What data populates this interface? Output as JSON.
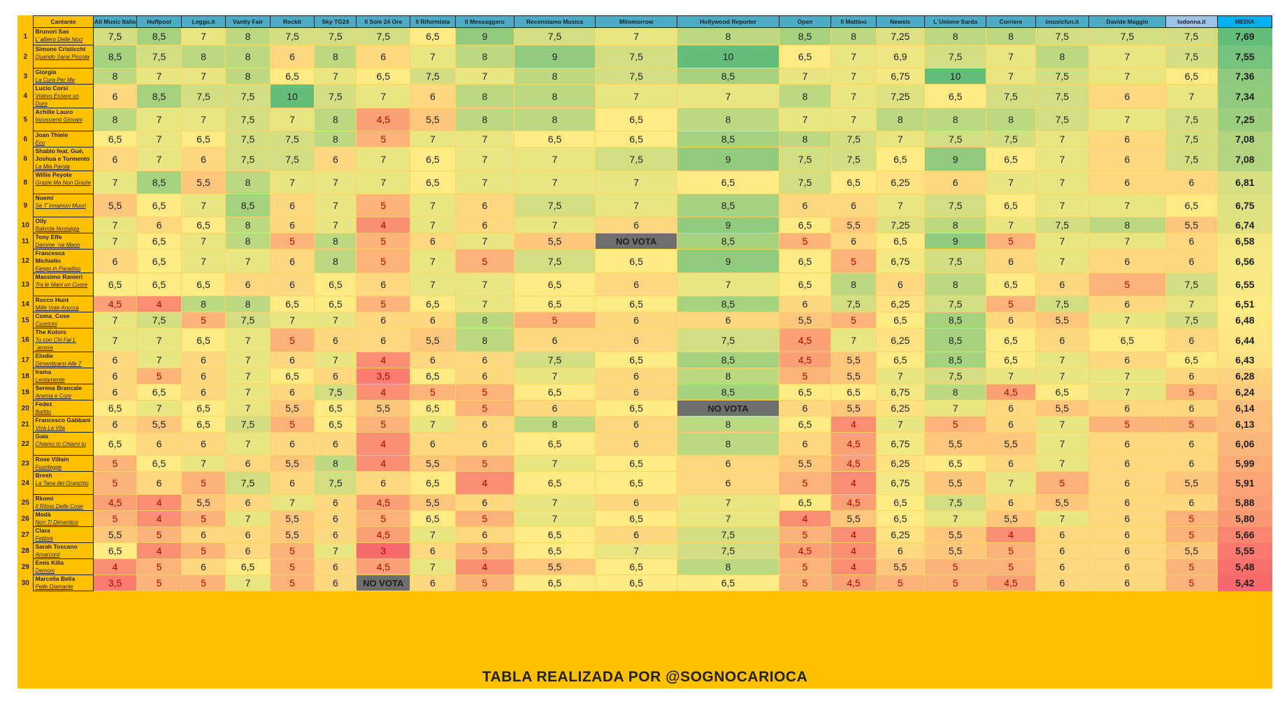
{
  "chart_data": {
    "type": "table",
    "footer": "TABLA REALIZADA POR @SOGNOCARIOCA",
    "no_vote_label": "NO VOTA",
    "header": {
      "singer_label": "Cantante",
      "outlets": [
        "All Music Italia",
        "Huffpost",
        "Leggo.it",
        "Vanity Fair",
        "Rockit",
        "Sky TG24",
        "Il Sole 24 Ore",
        "Il Riformista",
        "Il Messaggero",
        "Recensiamo Musica",
        "Mitomorrow",
        "Hollywood Reporter",
        "Open",
        "Il Mattino",
        "Newsic",
        "L´Unione Sarda",
        "Corriere",
        "imusicfun.it",
        "Davide Maggio",
        "Iodonna.it"
      ],
      "average_label": "MEDIA"
    },
    "rows": [
      {
        "rank": "1",
        "singer": "Brunori Sas",
        "song": "L´albero Delle Noci",
        "scores": [
          "7,5",
          "8,5",
          "7",
          "8",
          "7,5",
          "7,5",
          "7,5",
          "6,5",
          "9",
          "7,5",
          "7",
          "8",
          "8,5",
          "8",
          "7,25",
          "8",
          "8",
          "7,5",
          "7,5",
          "7,5"
        ],
        "average": "7,69"
      },
      {
        "rank": "2",
        "singer": "Simone Cristicchi",
        "song": "Quando Sarai Piccola",
        "scores": [
          "8,5",
          "7,5",
          "8",
          "8",
          "6",
          "8",
          "6",
          "7",
          "8",
          "9",
          "7,5",
          "10",
          "6,5",
          "7",
          "6,9",
          "7,5",
          "7",
          "8",
          "7",
          "7,5"
        ],
        "average": "7,55"
      },
      {
        "rank": "3",
        "singer": "Giorgia",
        "song": "La Cura Per Me",
        "scores": [
          "8",
          "7",
          "7",
          "8",
          "6,5",
          "7",
          "6,5",
          "7,5",
          "7",
          "8",
          "7,5",
          "8,5",
          "7",
          "7",
          "6,75",
          "10",
          "7",
          "7,5",
          "7",
          "6,5"
        ],
        "average": "7,36"
      },
      {
        "rank": "4",
        "singer": "Lucio Corsi",
        "song": "Volevo Essere un Duro",
        "scores": [
          "6",
          "8,5",
          "7,5",
          "7,5",
          "10",
          "7,5",
          "7",
          "6",
          "8",
          "8",
          "7",
          "7",
          "8",
          "7",
          "7,25",
          "6,5",
          "7,5",
          "7,5",
          "6",
          "7"
        ],
        "average": "7,34"
      },
      {
        "rank": "5",
        "singer": "Achille Lauro",
        "song": "Incoscienti Giovani",
        "scores": [
          "8",
          "7",
          "7",
          "7,5",
          "7",
          "8",
          "4,5",
          "5,5",
          "8",
          "8",
          "6,5",
          "8",
          "7",
          "7",
          "8",
          "8",
          "8",
          "7,5",
          "7",
          "7,5"
        ],
        "average": "7,25"
      },
      {
        "rank": "6",
        "singer": "Joan Thiele",
        "song": "Eco",
        "scores": [
          "6,5",
          "7",
          "6,5",
          "7,5",
          "7,5",
          "8",
          "5",
          "7",
          "7",
          "6,5",
          "6,5",
          "8,5",
          "8",
          "7,5",
          "7",
          "7,5",
          "7,5",
          "7",
          "6",
          "7,5"
        ],
        "average": "7,08"
      },
      {
        "rank": "6",
        "singer": "Shablo feat. Guè, Joshua e Tormento",
        "song": "La Mia Parola",
        "scores": [
          "6",
          "7",
          "6",
          "7,5",
          "7,5",
          "6",
          "7",
          "6,5",
          "7",
          "7",
          "7,5",
          "9",
          "7,5",
          "7,5",
          "6,5",
          "9",
          "6,5",
          "7",
          "6",
          "7,5"
        ],
        "average": "7,08"
      },
      {
        "rank": "8",
        "singer": "Willie Peyote",
        "song": "Grazie Ma Non Grazie",
        "scores": [
          "7",
          "8,5",
          "5,5",
          "8",
          "7",
          "7",
          "7",
          "6,5",
          "7",
          "7",
          "7",
          "6,5",
          "7,5",
          "6,5",
          "6,25",
          "6",
          "7",
          "7",
          "6",
          "6"
        ],
        "average": "6,81"
      },
      {
        "rank": "9",
        "singer": "Noemi",
        "song": "Se T´innamori Muori",
        "scores": [
          "5,5",
          "6,5",
          "7",
          "8,5",
          "6",
          "7",
          "5",
          "7",
          "6",
          "7,5",
          "7",
          "8,5",
          "6",
          "6",
          "7",
          "7,5",
          "6,5",
          "7",
          "7",
          "6,5"
        ],
        "average": "6,75"
      },
      {
        "rank": "10",
        "singer": "Olly",
        "song": "Balorda Nostalgia",
        "scores": [
          "7",
          "6",
          "6,5",
          "8",
          "6",
          "7",
          "4",
          "7",
          "6",
          "7",
          "6",
          "9",
          "6,5",
          "5,5",
          "7,25",
          "8",
          "7",
          "7,5",
          "8",
          "5,5"
        ],
        "average": "6,74"
      },
      {
        "rank": "11",
        "singer": "Tony Effe",
        "song": "Damme ´na Mano",
        "scores": [
          "7",
          "6,5",
          "7",
          "8",
          "5",
          "8",
          "5",
          "6",
          "7",
          "5,5",
          "NO VOTA",
          "8,5",
          "5",
          "6",
          "6,5",
          "9",
          "5",
          "7",
          "7",
          "6"
        ],
        "average": "6,58"
      },
      {
        "rank": "12",
        "singer": "Francesca Michielin",
        "song": "Fango in Paradiso",
        "scores": [
          "6",
          "6,5",
          "7",
          "7",
          "6",
          "8",
          "5",
          "7",
          "5",
          "7,5",
          "6,5",
          "9",
          "6,5",
          "5",
          "6,75",
          "7,5",
          "6",
          "7",
          "6",
          "6"
        ],
        "average": "6,56"
      },
      {
        "rank": "13",
        "singer": "Massimo Ranieri",
        "song": "Tra le Mani un Cuore",
        "scores": [
          "6,5",
          "6,5",
          "6,5",
          "6",
          "6",
          "6,5",
          "6",
          "7",
          "7",
          "6,5",
          "6",
          "7",
          "6,5",
          "8",
          "6",
          "8",
          "6,5",
          "6",
          "5",
          "7,5"
        ],
        "average": "6,55"
      },
      {
        "rank": "14",
        "singer": "Rocco Hunt",
        "song": "Mille Vote Ancora",
        "scores": [
          "4,5",
          "4",
          "8",
          "8",
          "6,5",
          "6,5",
          "5",
          "6,5",
          "7",
          "6,5",
          "6,5",
          "8,5",
          "6",
          "7,5",
          "6,25",
          "7,5",
          "5",
          "7,5",
          "6",
          "7"
        ],
        "average": "6,51"
      },
      {
        "rank": "15",
        "singer": "Coma_Cose",
        "song": "Cuoricini",
        "scores": [
          "7",
          "7,5",
          "5",
          "7,5",
          "7",
          "7",
          "6",
          "6",
          "8",
          "5",
          "6",
          "6",
          "5,5",
          "5",
          "6,5",
          "8,5",
          "6",
          "5,5",
          "7",
          "7,5"
        ],
        "average": "6,48"
      },
      {
        "rank": "16",
        "singer": "The Kolors",
        "song": "Tu con Chi Fai L´amore",
        "scores": [
          "7",
          "7",
          "6,5",
          "7",
          "5",
          "6",
          "6",
          "5,5",
          "8",
          "6",
          "6",
          "7,5",
          "4,5",
          "7",
          "6,25",
          "8,5",
          "6,5",
          "6",
          "6,5",
          "6"
        ],
        "average": "6,44"
      },
      {
        "rank": "17",
        "singer": "Elodie",
        "song": "Dimenticarsi Alle 7",
        "scores": [
          "6",
          "7",
          "6",
          "7",
          "6",
          "7",
          "4",
          "6",
          "6",
          "7,5",
          "6,5",
          "8,5",
          "4,5",
          "5,5",
          "6,5",
          "8,5",
          "6,5",
          "7",
          "6",
          "6,5"
        ],
        "average": "6,43"
      },
      {
        "rank": "18",
        "singer": "Irama",
        "song": "Lentamente",
        "scores": [
          "6",
          "5",
          "6",
          "7",
          "6,5",
          "6",
          "3,5",
          "6,5",
          "6",
          "7",
          "6",
          "8",
          "5",
          "5,5",
          "7",
          "7,5",
          "7",
          "7",
          "7",
          "6"
        ],
        "average": "6,28"
      },
      {
        "rank": "19",
        "singer": "Serena Brancale",
        "song": "Anema e Core",
        "scores": [
          "6",
          "6,5",
          "6",
          "7",
          "6",
          "7,5",
          "4",
          "5",
          "5",
          "6,5",
          "6",
          "8,5",
          "6,5",
          "6,5",
          "6,75",
          "8",
          "4,5",
          "6,5",
          "7",
          "5"
        ],
        "average": "6,24"
      },
      {
        "rank": "20",
        "singer": "Fedez",
        "song": "Battito",
        "scores": [
          "6,5",
          "7",
          "6,5",
          "7",
          "5,5",
          "6,5",
          "5,5",
          "6,5",
          "5",
          "6",
          "6,5",
          "NO VOTA",
          "6",
          "5,5",
          "6,25",
          "7",
          "6",
          "5,5",
          "6",
          "6"
        ],
        "average": "6,14"
      },
      {
        "rank": "21",
        "singer": "Francesco Gabbani",
        "song": "Viva La Vita",
        "scores": [
          "6",
          "5,5",
          "6,5",
          "7,5",
          "5",
          "6,5",
          "5",
          "7",
          "6",
          "8",
          "6",
          "8",
          "6,5",
          "4",
          "7",
          "5",
          "6",
          "7",
          "5",
          "5"
        ],
        "average": "6,13"
      },
      {
        "rank": "22",
        "singer": "Gaia",
        "song": "Chiamo Io Chiami tu",
        "scores": [
          "6,5",
          "6",
          "6",
          "7",
          "6",
          "6",
          "4",
          "6",
          "6",
          "6,5",
          "6",
          "8",
          "6",
          "4,5",
          "6,75",
          "5,5",
          "5,5",
          "7",
          "6",
          "6"
        ],
        "average": "6,06"
      },
      {
        "rank": "23",
        "singer": "Rose Villain",
        "song": "Fuorilegge",
        "scores": [
          "5",
          "6,5",
          "7",
          "6",
          "5,5",
          "8",
          "4",
          "5,5",
          "5",
          "7",
          "6,5",
          "6",
          "5,5",
          "4,5",
          "6,25",
          "6,5",
          "6",
          "7",
          "6",
          "6"
        ],
        "average": "5,99"
      },
      {
        "rank": "24",
        "singer": "Bresh",
        "song": "La Tana del Granchio",
        "scores": [
          "5",
          "6",
          "5",
          "7,5",
          "6",
          "7,5",
          "6",
          "6,5",
          "4",
          "6,5",
          "6,5",
          "6",
          "5",
          "4",
          "6,75",
          "5,5",
          "7",
          "5",
          "6",
          "5,5"
        ],
        "average": "5,91"
      },
      {
        "rank": "25",
        "singer": "Rkomi",
        "song": "Il Ritmo Delle Cose",
        "scores": [
          "4,5",
          "4",
          "5,5",
          "6",
          "7",
          "6",
          "4,5",
          "5,5",
          "6",
          "7",
          "6",
          "7",
          "6,5",
          "4,5",
          "6,5",
          "7,5",
          "6",
          "5,5",
          "6",
          "6"
        ],
        "average": "5,88"
      },
      {
        "rank": "26",
        "singer": "Modà",
        "song": "Non Ti Dimentico",
        "scores": [
          "5",
          "4",
          "5",
          "7",
          "5,5",
          "6",
          "5",
          "6,5",
          "5",
          "7",
          "6,5",
          "7",
          "4",
          "5,5",
          "6,5",
          "7",
          "5,5",
          "7",
          "6",
          "5"
        ],
        "average": "5,80"
      },
      {
        "rank": "27",
        "singer": "Clara",
        "song": "Febbre",
        "scores": [
          "5,5",
          "5",
          "6",
          "6",
          "5,5",
          "6",
          "4,5",
          "7",
          "6",
          "6,5",
          "6",
          "7,5",
          "5",
          "4",
          "6,25",
          "5,5",
          "4",
          "6",
          "6",
          "5"
        ],
        "average": "5,66"
      },
      {
        "rank": "28",
        "singer": "Sarah Toscano",
        "song": "Amarcord",
        "scores": [
          "6,5",
          "4",
          "5",
          "6",
          "5",
          "7",
          "3",
          "6",
          "5",
          "6,5",
          "7",
          "7,5",
          "4,5",
          "4",
          "6",
          "5,5",
          "5",
          "6",
          "6",
          "5,5"
        ],
        "average": "5,55"
      },
      {
        "rank": "29",
        "singer": "Emis Killa",
        "song": "Demoni",
        "scores": [
          "4",
          "5",
          "6",
          "6,5",
          "5",
          "6",
          "4,5",
          "7",
          "4",
          "5,5",
          "6,5",
          "8",
          "5",
          "4",
          "5,5",
          "5",
          "5",
          "6",
          "6",
          "5"
        ],
        "average": "5,48"
      },
      {
        "rank": "30",
        "singer": "Marcella Bella",
        "song": "Pelle Diamante",
        "scores": [
          "3,5",
          "5",
          "5",
          "7",
          "5",
          "6",
          "NO VOTA",
          "6",
          "5",
          "6,5",
          "6,5",
          "6,5",
          "5",
          "4,5",
          "5",
          "5",
          "4,5",
          "6",
          "6",
          "5"
        ],
        "average": "5,42"
      }
    ]
  }
}
